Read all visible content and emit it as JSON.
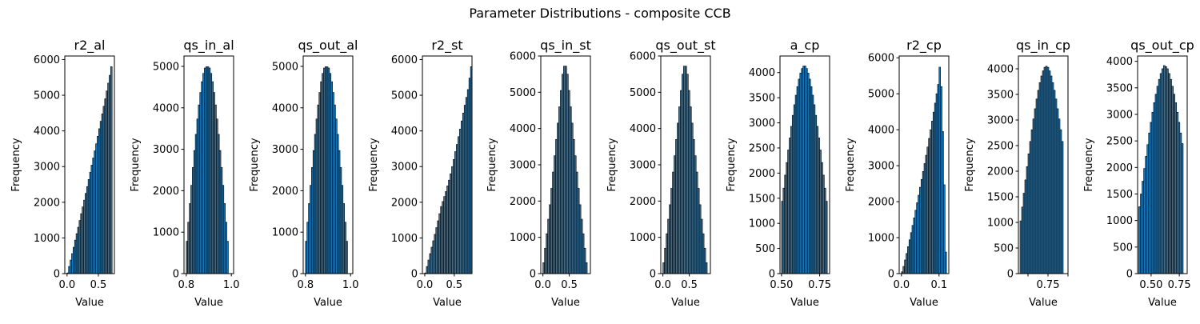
{
  "suptitle": "Parameter Distributions - composite CCB",
  "colors": {
    "bar_fill": "#1f77b4",
    "bar_edge": "#000000",
    "axis": "#000000"
  },
  "chart_data": [
    {
      "type": "bar",
      "title": "r2_al",
      "xlabel": "Value",
      "ylabel": "Frequency",
      "xlim": [
        -0.036,
        0.756
      ],
      "ylim": [
        0,
        6100
      ],
      "xticks": [
        0.0,
        0.5
      ],
      "xticklabels": [
        "0.0",
        "0.5"
      ],
      "yticks": [
        0,
        1000,
        2000,
        3000,
        4000,
        5000,
        6000
      ],
      "yticklabels": [
        "0",
        "1000",
        "2000",
        "3000",
        "4000",
        "5000",
        "6000"
      ],
      "bin_start": 0.0,
      "bin_width": 0.024,
      "values": [
        20,
        200,
        380,
        560,
        740,
        940,
        1120,
        1300,
        1490,
        1680,
        1870,
        2060,
        2250,
        2440,
        2640,
        2840,
        3040,
        3240,
        3440,
        3640,
        3850,
        4060,
        4270,
        4480,
        4690,
        4900,
        5120,
        5340,
        5560,
        5800
      ]
    },
    {
      "type": "bar",
      "title": "qs_in_al",
      "xlabel": "Value",
      "ylabel": "Frequency",
      "xlim": [
        0.79,
        1.01
      ],
      "ylim": [
        0,
        5250
      ],
      "xticks": [
        0.8,
        1.0
      ],
      "xticklabels": [
        "0.8",
        "1.0"
      ],
      "yticks": [
        0,
        1000,
        2000,
        3000,
        4000,
        5000
      ],
      "yticklabels": [
        "0",
        "1000",
        "2000",
        "3000",
        "4000",
        "5000"
      ],
      "bin_start": 0.8,
      "bin_width": 0.00667,
      "values": [
        780,
        1240,
        1690,
        2130,
        2560,
        2970,
        3360,
        3730,
        4070,
        4370,
        4630,
        4830,
        4960,
        4990,
        4990,
        4960,
        4830,
        4630,
        4370,
        4070,
        3730,
        3360,
        2970,
        2560,
        2130,
        1690,
        1240,
        780
      ]
    },
    {
      "type": "bar",
      "title": "qs_out_al",
      "xlabel": "Value",
      "ylabel": "Frequency",
      "xlim": [
        0.79,
        1.01
      ],
      "ylim": [
        0,
        5250
      ],
      "xticks": [
        0.8,
        1.0
      ],
      "xticklabels": [
        "0.8",
        "1.0"
      ],
      "yticks": [
        0,
        1000,
        2000,
        3000,
        4000,
        5000
      ],
      "yticklabels": [
        "0",
        "1000",
        "2000",
        "3000",
        "4000",
        "5000"
      ],
      "bin_start": 0.8,
      "bin_width": 0.00667,
      "values": [
        780,
        1240,
        1690,
        2130,
        2560,
        2970,
        3360,
        3730,
        4070,
        4370,
        4630,
        4830,
        4960,
        4990,
        4990,
        4960,
        4830,
        4630,
        4370,
        4070,
        3730,
        3360,
        2970,
        2560,
        2130,
        1690,
        1240,
        780
      ]
    },
    {
      "type": "bar",
      "title": "r2_st",
      "xlabel": "Value",
      "ylabel": "Frequency",
      "xlim": [
        -0.04,
        0.8
      ],
      "ylim": [
        0,
        6100
      ],
      "xticks": [
        0.0,
        0.5
      ],
      "xticklabels": [
        "0.0",
        "0.5"
      ],
      "yticks": [
        0,
        1000,
        2000,
        3000,
        4000,
        5000,
        6000
      ],
      "yticklabels": [
        "0",
        "1000",
        "2000",
        "3000",
        "4000",
        "5000",
        "6000"
      ],
      "bin_start": 0.0,
      "bin_width": 0.0267,
      "values": [
        20,
        200,
        380,
        560,
        740,
        920,
        1100,
        1290,
        1480,
        1680,
        1880,
        2020,
        2160,
        2300,
        2460,
        2620,
        2800,
        3000,
        3200,
        3420,
        3620,
        3840,
        4050,
        4280,
        4500,
        4720,
        4940,
        5160,
        5480,
        5800
      ]
    },
    {
      "type": "bar",
      "title": "qs_in_st",
      "xlabel": "Value",
      "ylabel": "Frequency",
      "xlim": [
        -0.04,
        0.9
      ],
      "ylim": [
        0,
        6000
      ],
      "xticks": [
        0.0,
        0.5
      ],
      "xticklabels": [
        "0.0",
        "0.5"
      ],
      "yticks": [
        0,
        1000,
        2000,
        3000,
        4000,
        5000,
        6000
      ],
      "yticklabels": [
        "0",
        "1000",
        "2000",
        "3000",
        "4000",
        "5000",
        "6000"
      ],
      "bin_start": 0.0,
      "bin_width": 0.03,
      "values": [
        300,
        700,
        1100,
        1500,
        1900,
        2350,
        2800,
        3250,
        3700,
        4150,
        4600,
        5050,
        5500,
        5720,
        5720,
        5500,
        5050,
        4600,
        4150,
        3700,
        3250,
        2800,
        2350,
        1900,
        1500,
        1100,
        700,
        300
      ]
    },
    {
      "type": "bar",
      "title": "qs_out_st",
      "xlabel": "Value",
      "ylabel": "Frequency",
      "xlim": [
        -0.04,
        0.9
      ],
      "ylim": [
        0,
        6000
      ],
      "xticks": [
        0.0,
        0.5
      ],
      "xticklabels": [
        "0.0",
        "0.5"
      ],
      "yticks": [
        0,
        1000,
        2000,
        3000,
        4000,
        5000,
        6000
      ],
      "yticklabels": [
        "0",
        "1000",
        "2000",
        "3000",
        "4000",
        "5000",
        "6000"
      ],
      "bin_start": 0.0,
      "bin_width": 0.03,
      "values": [
        300,
        700,
        1100,
        1500,
        1900,
        2350,
        2800,
        3250,
        3700,
        4150,
        4600,
        5050,
        5500,
        5720,
        5720,
        5500,
        5050,
        4600,
        4150,
        3700,
        3250,
        2800,
        2350,
        1900,
        1500,
        1100,
        700,
        300
      ]
    },
    {
      "type": "bar",
      "title": "a_cp",
      "xlabel": "Value",
      "ylabel": "Frequency",
      "xlim": [
        0.49,
        0.815
      ],
      "ylim": [
        0,
        4330
      ],
      "xticks": [
        0.5,
        0.75
      ],
      "xticklabels": [
        "0.50",
        "0.75"
      ],
      "yticks": [
        0,
        500,
        1000,
        1500,
        2000,
        2500,
        3000,
        3500,
        4000
      ],
      "yticklabels": [
        "0",
        "500",
        "1000",
        "1500",
        "2000",
        "2500",
        "3000",
        "3500",
        "4000"
      ],
      "bin_start": 0.5,
      "bin_width": 0.01,
      "values": [
        1440,
        1700,
        1960,
        2210,
        2460,
        2700,
        2930,
        3150,
        3360,
        3550,
        3720,
        3870,
        3990,
        4080,
        4130,
        4130,
        4080,
        3990,
        3870,
        3720,
        3550,
        3360,
        3150,
        2930,
        2700,
        2460,
        2210,
        1960,
        1700,
        1440
      ]
    },
    {
      "type": "bar",
      "title": "r2_cp",
      "xlabel": "Value",
      "ylabel": "Frequency",
      "xlim": [
        -0.006,
        0.126
      ],
      "ylim": [
        0,
        6050
      ],
      "xticks": [
        0.0,
        0.1
      ],
      "xticklabels": [
        "0.0",
        "0.1"
      ],
      "yticks": [
        0,
        1000,
        2000,
        3000,
        4000,
        5000,
        6000
      ],
      "yticklabels": [
        "0",
        "1000",
        "2000",
        "3000",
        "4000",
        "5000",
        "6000"
      ],
      "bin_start": 0.0,
      "bin_width": 0.004,
      "values": [
        50,
        200,
        380,
        560,
        750,
        940,
        1140,
        1340,
        1550,
        1760,
        1970,
        2180,
        2400,
        2620,
        2840,
        3060,
        3290,
        3520,
        3760,
        4000,
        4240,
        4490,
        4740,
        5000,
        5260,
        5740,
        5200,
        3950,
        2470,
        600
      ]
    },
    {
      "type": "bar",
      "title": "qs_in_cp",
      "xlabel": "Value",
      "ylabel": "Frequency",
      "xlim": [
        0.565,
        0.875
      ],
      "ylim": [
        0,
        4250
      ],
      "xticks": [
        0.625,
        0.75,
        0.875
      ],
      "xticklabels": [
        "",
        "0.75",
        ""
      ],
      "yticks": [
        0,
        500,
        1000,
        1500,
        2000,
        2500,
        3000,
        3500,
        4000
      ],
      "yticklabels": [
        "0",
        "500",
        "1000",
        "1500",
        "2000",
        "2500",
        "3000",
        "3500",
        "4000"
      ],
      "bin_start": 0.575,
      "bin_width": 0.01,
      "values": [
        1030,
        1300,
        1570,
        1830,
        2090,
        2340,
        2580,
        2810,
        3020,
        3220,
        3410,
        3580,
        3730,
        3860,
        3960,
        4030,
        4050,
        4030,
        3960,
        3860,
        3730,
        3580,
        3410,
        3220,
        3020,
        2810,
        2580
      ]
    },
    {
      "type": "bar",
      "title": "qs_out_cp",
      "xlabel": "Value",
      "ylabel": "Frequency",
      "xlim": [
        0.38,
        0.82
      ],
      "ylim": [
        0,
        4100
      ],
      "xticks": [
        0.5,
        0.75
      ],
      "xticklabels": [
        "0.50",
        "0.75"
      ],
      "yticks": [
        0,
        500,
        1000,
        1500,
        2000,
        2500,
        3000,
        3500,
        4000
      ],
      "yticklabels": [
        "0",
        "500",
        "1000",
        "1500",
        "2000",
        "2500",
        "3000",
        "3500",
        "4000"
      ],
      "bin_start": 0.39,
      "bin_width": 0.0146,
      "values": [
        1260,
        1500,
        1740,
        1980,
        2210,
        2430,
        2650,
        2850,
        3040,
        3220,
        3380,
        3530,
        3660,
        3770,
        3860,
        3920,
        3900,
        3860,
        3770,
        3660,
        3530,
        3380,
        3220,
        3040,
        2850,
        2650,
        2450
      ]
    }
  ]
}
